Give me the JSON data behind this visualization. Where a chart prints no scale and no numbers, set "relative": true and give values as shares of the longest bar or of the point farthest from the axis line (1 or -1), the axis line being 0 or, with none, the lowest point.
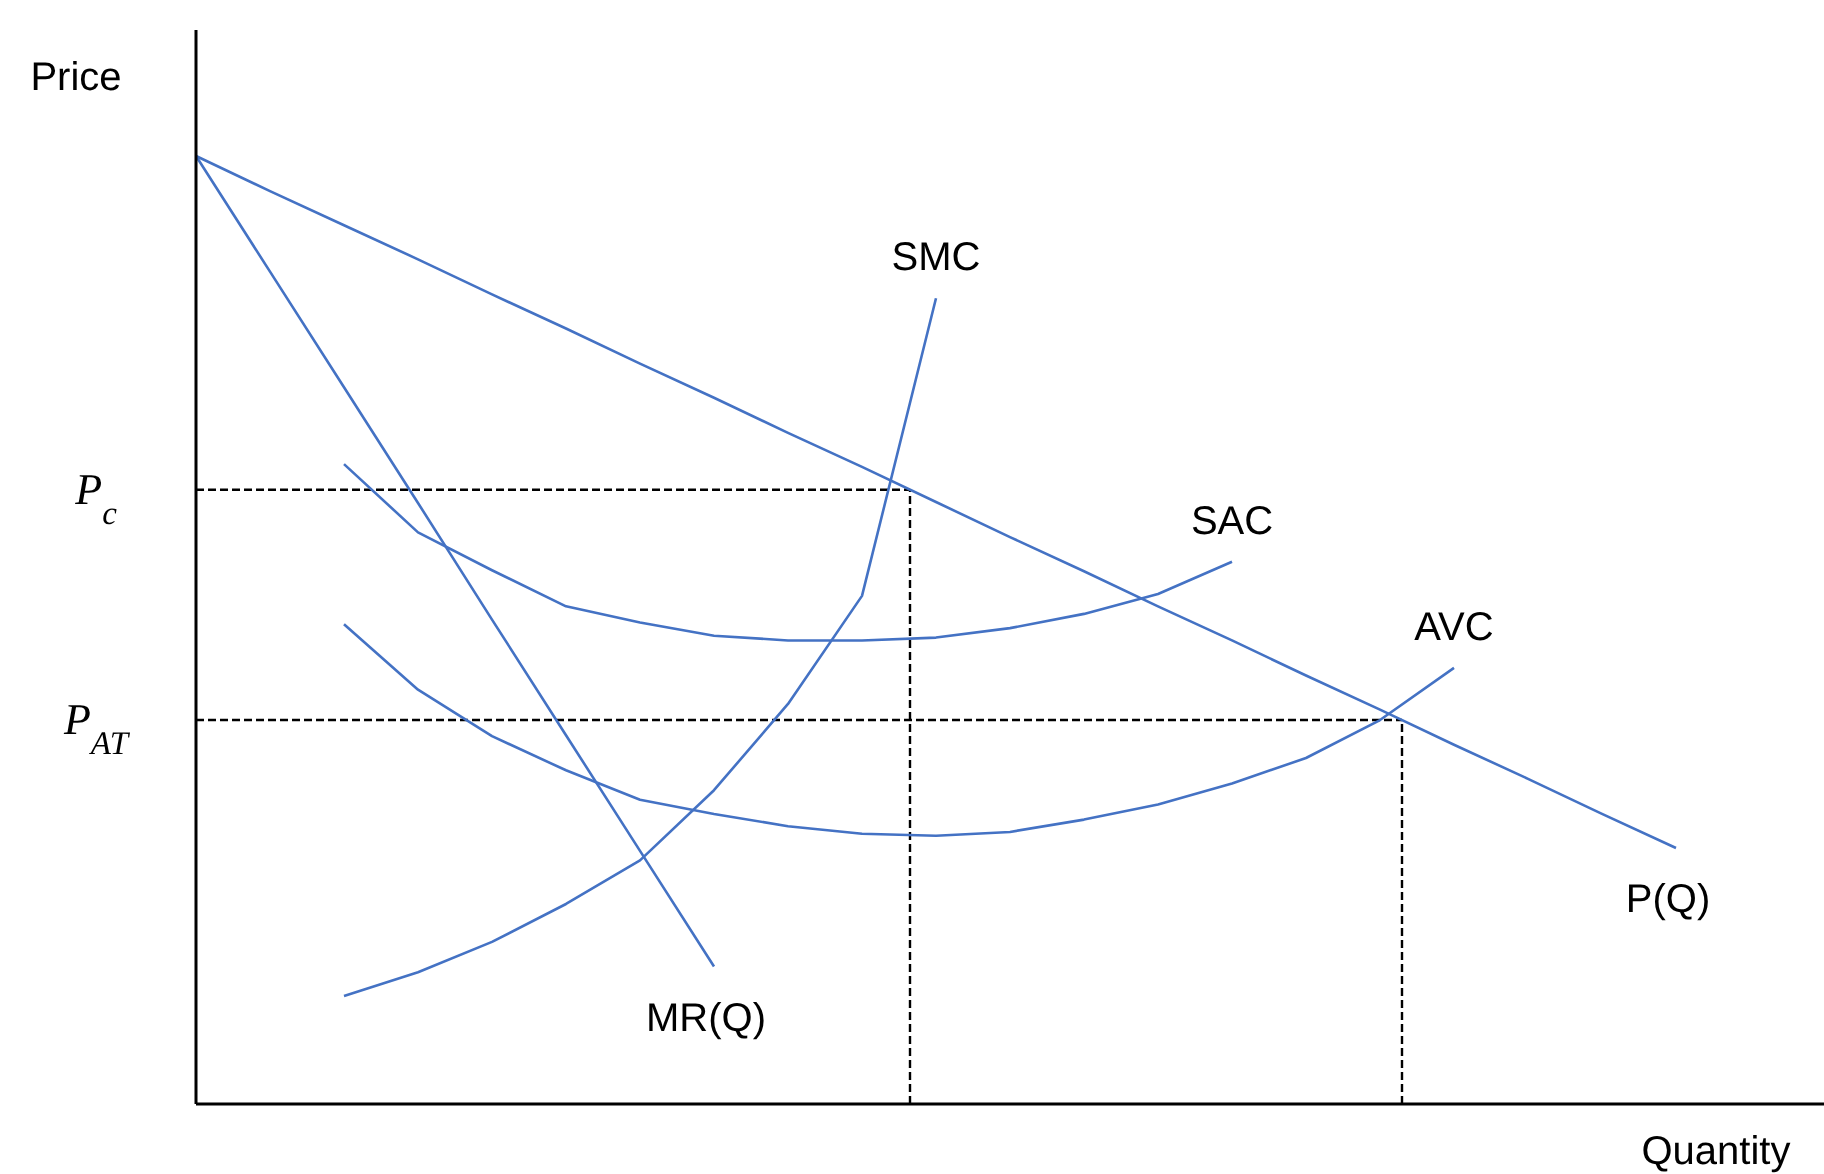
{
  "chart_data": {
    "type": "line",
    "relative": true,
    "xlabel": "Quantity",
    "ylabel": "Price",
    "marker": "none",
    "line_style": "solid",
    "categories": [
      null,
      null,
      null,
      null,
      null,
      null,
      null,
      null,
      null,
      null,
      null,
      null,
      null,
      null,
      null,
      null,
      null,
      null,
      null,
      null,
      null,
      null,
      null
    ],
    "series": [
      {
        "name": "P(Q)",
        "color": "#4472c4",
        "values": [
          1.0,
          0.963,
          0.927,
          0.891,
          0.854,
          0.818,
          0.781,
          0.745,
          0.708,
          0.672,
          0.635,
          0.598,
          0.562,
          0.525,
          0.489,
          0.452,
          0.416,
          0.379,
          0.343,
          0.306,
          0.27,
          null,
          null
        ]
      },
      {
        "name": "MR(Q)",
        "color": "#4472c4",
        "values": [
          1.0,
          0.878,
          0.756,
          0.634,
          0.511,
          0.389,
          0.267,
          0.145,
          null,
          null,
          null,
          null,
          null,
          null,
          null,
          null,
          null,
          null,
          null,
          null,
          null,
          null,
          null
        ]
      },
      {
        "name": "SMC",
        "color": "#4472c4",
        "values": [
          null,
          null,
          0.114,
          0.139,
          0.171,
          0.211,
          0.257,
          0.331,
          0.422,
          0.536,
          0.85,
          null,
          null,
          null,
          null,
          null,
          null,
          null,
          null,
          null,
          null,
          null,
          null
        ]
      },
      {
        "name": "SAC",
        "color": "#4472c4",
        "values": [
          null,
          null,
          0.675,
          0.603,
          0.563,
          0.525,
          0.508,
          0.494,
          0.489,
          0.489,
          0.492,
          0.502,
          0.517,
          0.538,
          0.572,
          null,
          null,
          null,
          null,
          null,
          null,
          null,
          null
        ]
      },
      {
        "name": "AVC",
        "color": "#4472c4",
        "values": [
          null,
          null,
          0.506,
          0.437,
          0.388,
          0.352,
          0.321,
          0.306,
          0.293,
          0.285,
          0.283,
          0.287,
          0.3,
          0.316,
          0.338,
          0.365,
          0.405,
          0.46,
          null,
          null,
          null,
          null,
          null
        ]
      }
    ],
    "ref_lines": [
      {
        "axis": "y",
        "value": 0.648,
        "label": "P$_{c}$",
        "line_style": "dashed",
        "color": "#000000"
      },
      {
        "axis": "y",
        "value": 0.405,
        "label": "P$_{AT}$",
        "line_style": "dashed",
        "color": "#000000"
      }
    ]
  }
}
